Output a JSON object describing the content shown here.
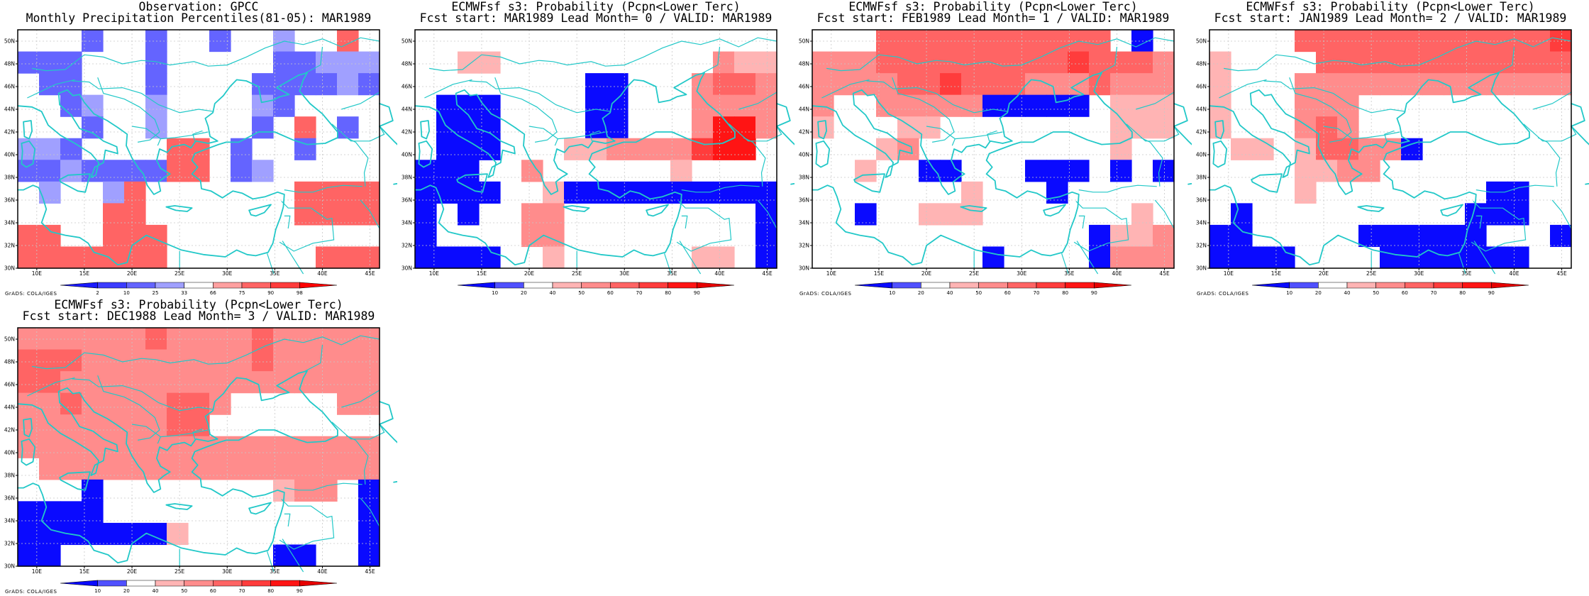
{
  "credit": "GrADS: COLA/IGES",
  "axes": {
    "lon_labels": [
      "10E",
      "15E",
      "20E",
      "25E",
      "30E",
      "35E",
      "40E",
      "45E"
    ],
    "lat_labels": [
      "30N",
      "32N",
      "34N",
      "36N",
      "38N",
      "40N",
      "42N",
      "44N",
      "46N",
      "48N",
      "50N"
    ]
  },
  "colors": {
    "coast": "#22c8c8",
    "grid": "#c8c8c8"
  },
  "colorbars": {
    "obs": {
      "labels": [
        "2",
        "10",
        "25",
        "33",
        "66",
        "75",
        "90",
        "98"
      ],
      "colors": [
        "#1a1aff",
        "#3c3cff",
        "#6464ff",
        "#a0a0ff",
        "#ffffff",
        "#ffa0a0",
        "#ff6464",
        "#ff3c3c",
        "#ff0000"
      ]
    },
    "fcst": {
      "labels": [
        "10",
        "20",
        "40",
        "50",
        "60",
        "70",
        "80",
        "90"
      ],
      "colors": [
        "#0a0aff",
        "#5050ff",
        "#ffffff",
        "#ffb4b4",
        "#ff8c8c",
        "#ff6464",
        "#ff3c3c",
        "#ff1414",
        "#e60000"
      ]
    }
  },
  "panels": [
    {
      "title": "Observation: GPCC",
      "subtitle": "Monthly Precipitation Percentiles(81-05): MAR1989",
      "colorbar": "obs",
      "cells": [
        "W W W B W W B W W B W W C W W R W",
        "B B B W W W B W W W W W B B C C C",
        "W B B W W W B W W W W B B B B C B",
        "W W B C W W C W W W W C B W W W W",
        "W W W B W W C W W W W B W R W B W",
        "C C B W W W W R R W B W W B W W W",
        "B B C B B B B R R W B C W W W W W",
        "W C W W C R W W W W W W W R R R R",
        "W W W W R R W W W W W W W R R R R",
        "R R W W R R R W W W W W W W W W W",
        "R R R R R R R W W W W W W W R R R"
      ]
    },
    {
      "title": "ECMWFsf s3: Probability (Pcpn<Lower Terc)",
      "subtitle": "Fcst start: MAR1989  Lead Month= 0 / VALID: MAR1989",
      "colorbar": "fcst",
      "cells": [
        "W W W W W W W W W W W W W W W W W",
        "W W 3 3 W W W W W W W W W W 4 3 3",
        "W W W W W W W W B B W W W 4 5 5 4",
        "W B B B W W W W B B W W W 4 4 4 4",
        "W B B B W W W W B B W W W 4 7 7 4",
        "W B B B W W W 3 3 4 4 4 4 6 7 7 W",
        "B B B W W 4 W W W W W W 3 W W W W",
        "B B B B W W 3 B B B B B B B B B B",
        "B W B W W 4 4 W W W W W W W W W B",
        "B W W W W 4 4 W W W W W W W W W B",
        "B B B B W W 3 W W W W W W 3 3 W B"
      ]
    },
    {
      "title": "ECMWFsf s3: Probability (Pcpn<Lower Terc)",
      "subtitle": "Fcst start: FEB1989  Lead Month= 1 / VALID: MAR1989",
      "colorbar": "fcst",
      "cells": [
        "W W W 5 5 5 5 5 5 5 5 5 5 5 W B W",
        "4 4 4 5 5 5 5 5 5 5 5 5 6 5 5 5 4",
        "4 4 4 4 5 5 6 5 5 5 4 4 4 5 4 4 4",
        "4 W W 4 4 4 4 4 B B B B B W 3 3 3",
        "3 W W W 3 3 W W W W W W W W 3 3 3",
        "W W W 3 4 W W W W W W W W W 3 W W",
        "W W 3 W W B B W W W B B B W B W B",
        "W W W W W W W 3 W W W B W W W W W",
        "W W B W W 3 3 3 W W W W W W W 3 W",
        "W W W W W W W W W W W W W B 3 3 4",
        "W W W W W W W W B W W W W B 4 4 4"
      ]
    },
    {
      "title": "ECMWFsf s3: Probability (Pcpn<Lower Terc)",
      "subtitle": "Fcst start: JAN1989  Lead Month= 2 / VALID: MAR1989",
      "colorbar": "fcst",
      "cells": [
        "W W W W 5 5 5 5 5 5 5 5 5 5 5 5 6",
        "3 W W W W 5 5 5 5 5 5 5 5 5 5 5 5",
        "3 W W W 4 4 4 4 4 4 4 4 4 4 4 4 4",
        "3 W W W 4 4 4 W W W W W W W W W W",
        "3 W W W 4 5 4 W W W W W W W W W W",
        "W 3 3 W 3 5 5 4 4 B W W W W W W W",
        "W W W W 3 3 4 4 W W W W W W W W W",
        "W W W W 3 W W W W W W W W B B W W",
        "W B W W W W W W W W W W B B B W W",
        "B B W W W W W B B B B B B W W W B",
        "B B B B W W W W B B B B B B B W W"
      ]
    },
    {
      "title": "ECMWFsf s3: Probability (Pcpn<Lower Terc)",
      "subtitle": "Fcst start: DEC1988  Lead Month= 3 / VALID: MAR1989",
      "colorbar": "fcst",
      "cells": [
        "4 4 4 4 4 4 5 4 4 4 4 5 4 4 4 4 4",
        "5 5 5 4 4 4 4 4 4 4 4 5 4 4 4 4 4",
        "5 5 4 4 4 4 4 4 4 4 4 4 4 4 4 4 4",
        "4 4 5 4 4 4 4 5 5 4 W W W W W 4 4",
        "4 4 4 4 4 4 4 5 5 W W W W W W W W",
        "4 4 4 4 4 4 4 4 4 4 4 4 4 4 4 4 4",
        "W 4 4 4 4 4 4 4 4 4 4 4 4 4 4 4 4",
        "W W W B W W W W W W W W 3 4 4 W B",
        "B B B B W W W W W W W W W W W W B",
        "B B B B B B B 3 W W W W W W W W B",
        "B B W W W W W W W W W W B B W W B"
      ]
    }
  ]
}
